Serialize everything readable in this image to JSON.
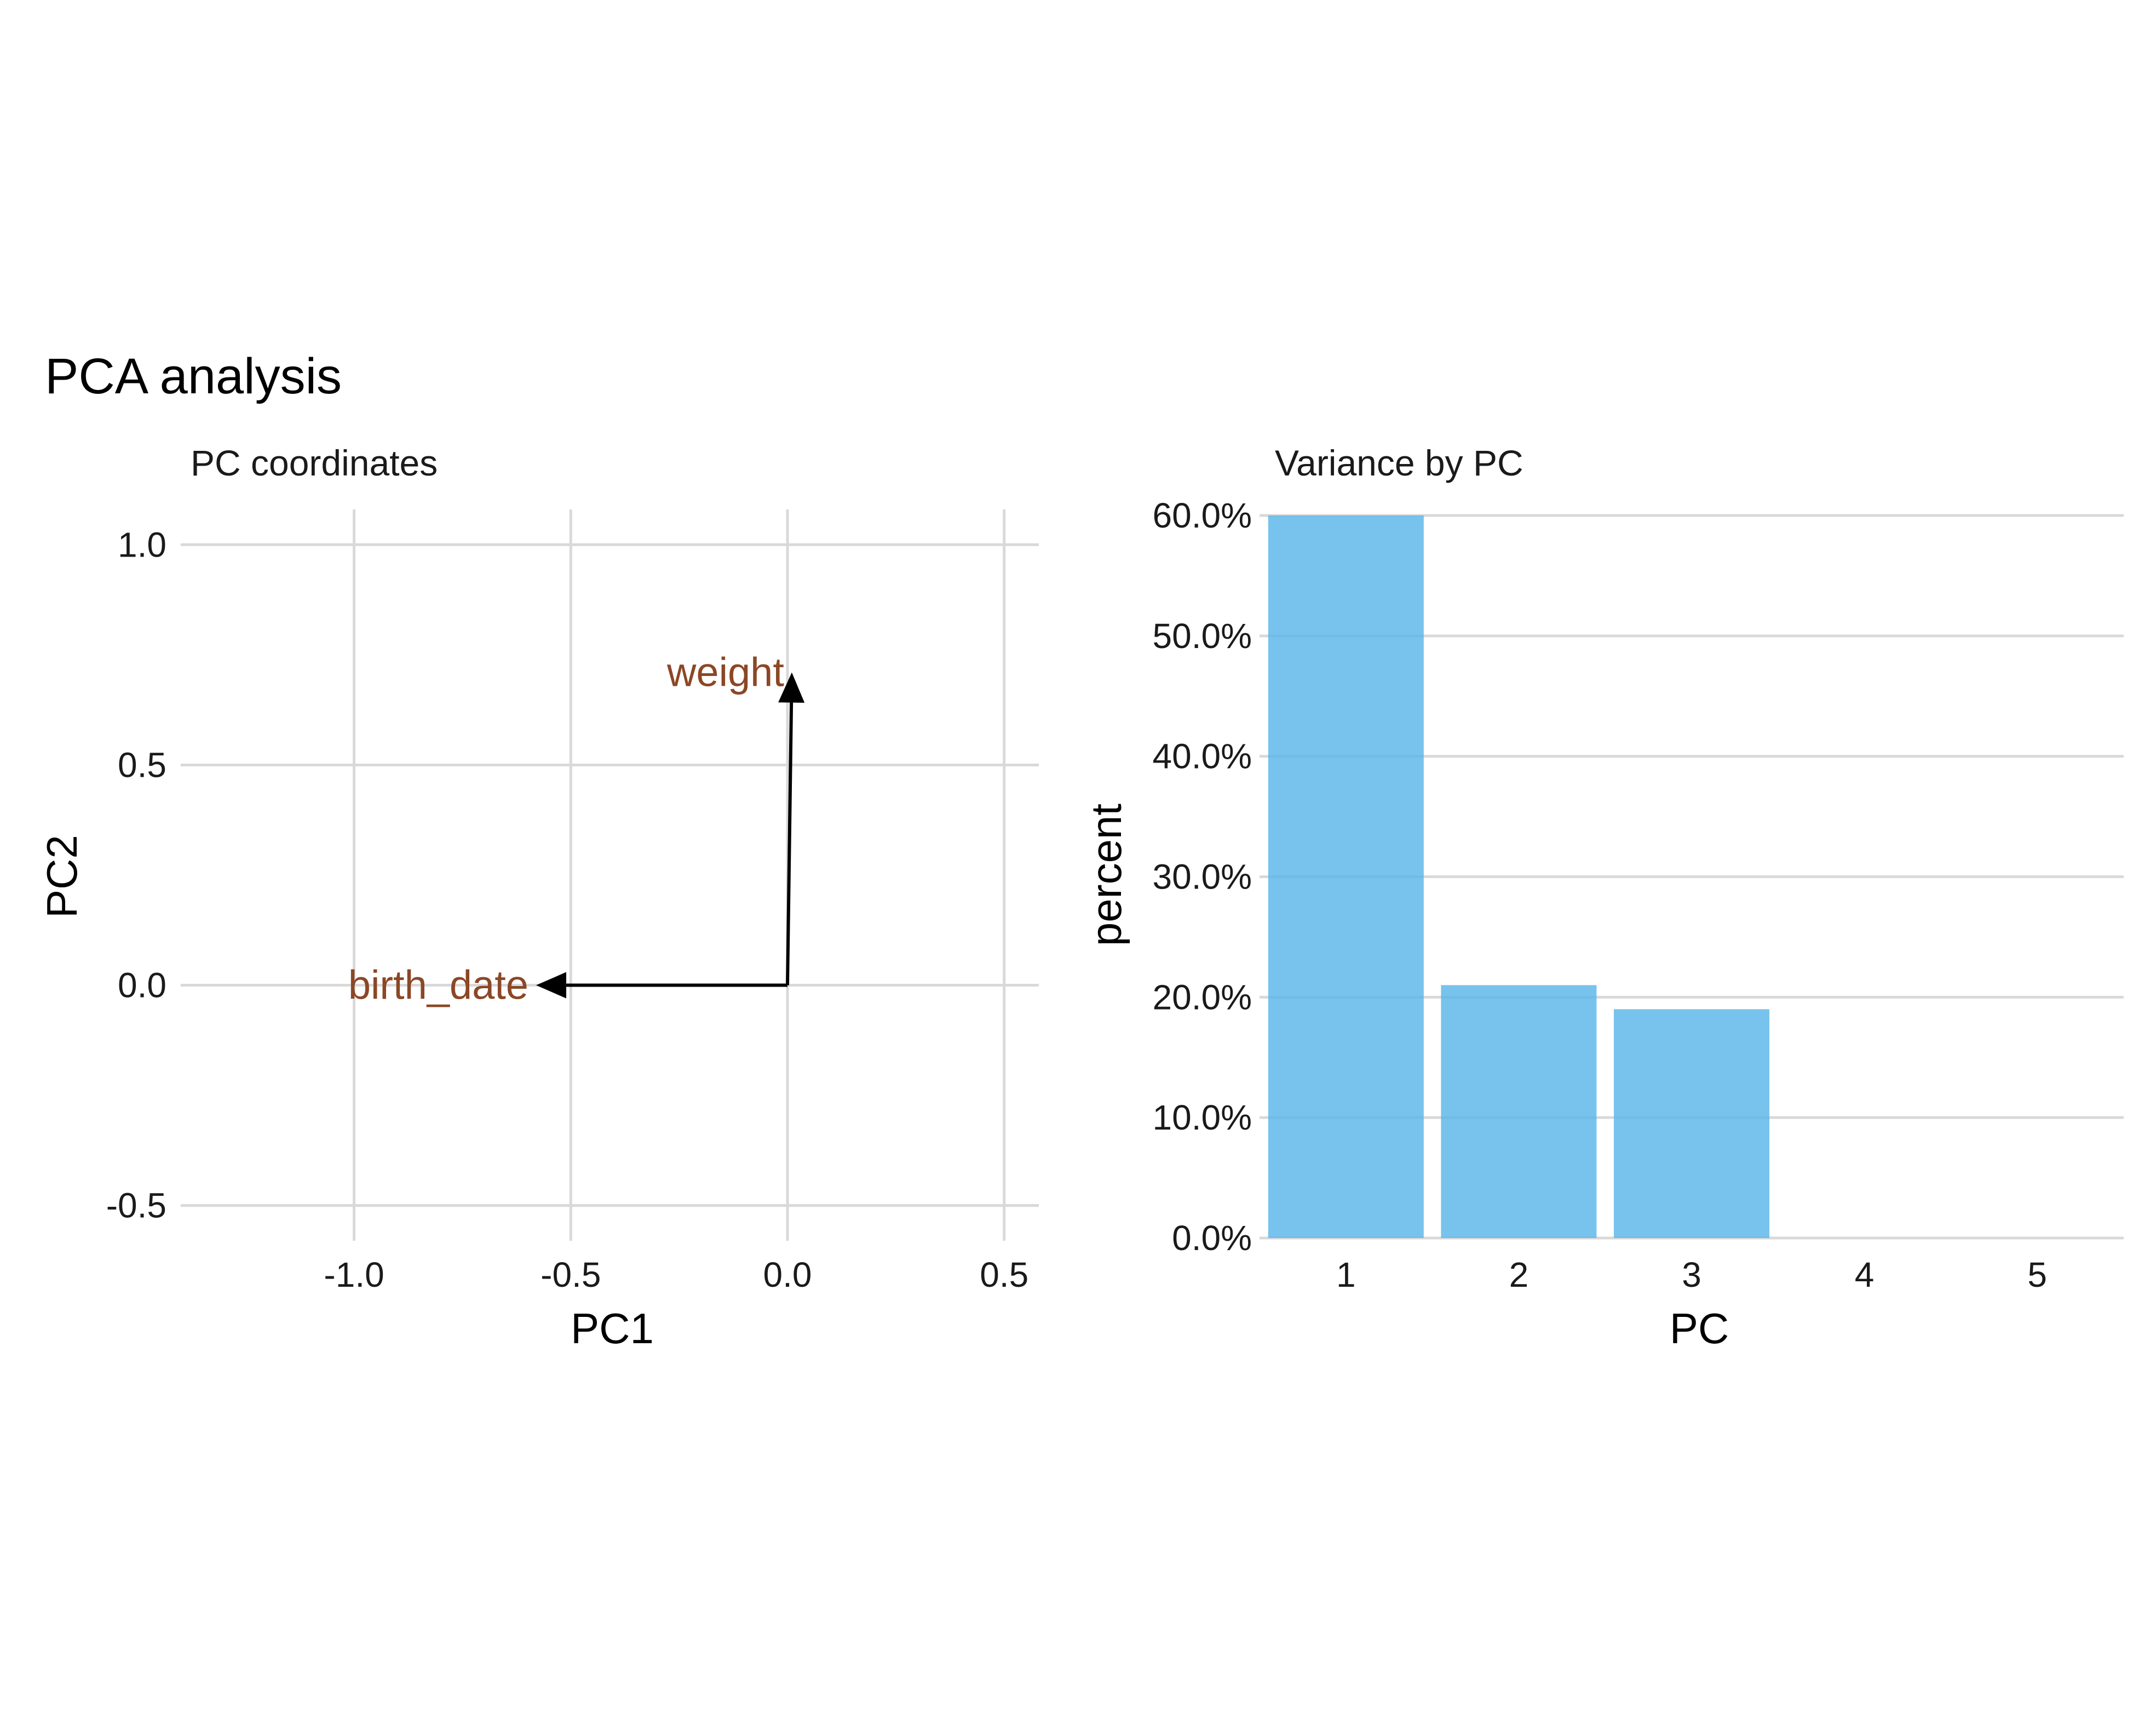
{
  "title": "PCA analysis",
  "chart_data": [
    {
      "type": "scatter",
      "subtitle": "PC coordinates",
      "xlabel": "PC1",
      "ylabel": "PC2",
      "xlim": [
        -1.4,
        0.58
      ],
      "ylim": [
        -0.58,
        1.08
      ],
      "xticks": [
        -1.0,
        -0.5,
        0.0,
        0.5
      ],
      "xtick_labels": [
        "-1.0",
        "-0.5",
        "0.0",
        "0.5"
      ],
      "yticks": [
        -0.5,
        0.0,
        0.5,
        1.0
      ],
      "ytick_labels": [
        "-0.5",
        "0.0",
        "0.5",
        "1.0"
      ],
      "grid": true,
      "label_color": "#8b4726",
      "arrow_color": "#000000",
      "loadings": [
        {
          "label": "weight",
          "x": 0.01,
          "y": 0.71
        },
        {
          "label": "birth_date",
          "x": -0.58,
          "y": 0.0
        }
      ]
    },
    {
      "type": "bar",
      "subtitle": "Variance by PC",
      "xlabel": "PC",
      "ylabel": "percent",
      "categories": [
        "1",
        "2",
        "3",
        "4",
        "5"
      ],
      "values": [
        60.0,
        21.0,
        19.0,
        0.0,
        0.0
      ],
      "ylim": [
        0,
        60
      ],
      "yticks": [
        0,
        10,
        20,
        30,
        40,
        50,
        60
      ],
      "ytick_labels": [
        "0.0%",
        "10.0%",
        "20.0%",
        "30.0%",
        "40.0%",
        "50.0%",
        "60.0%"
      ],
      "grid": true,
      "bar_color": "#56b4e9"
    }
  ]
}
